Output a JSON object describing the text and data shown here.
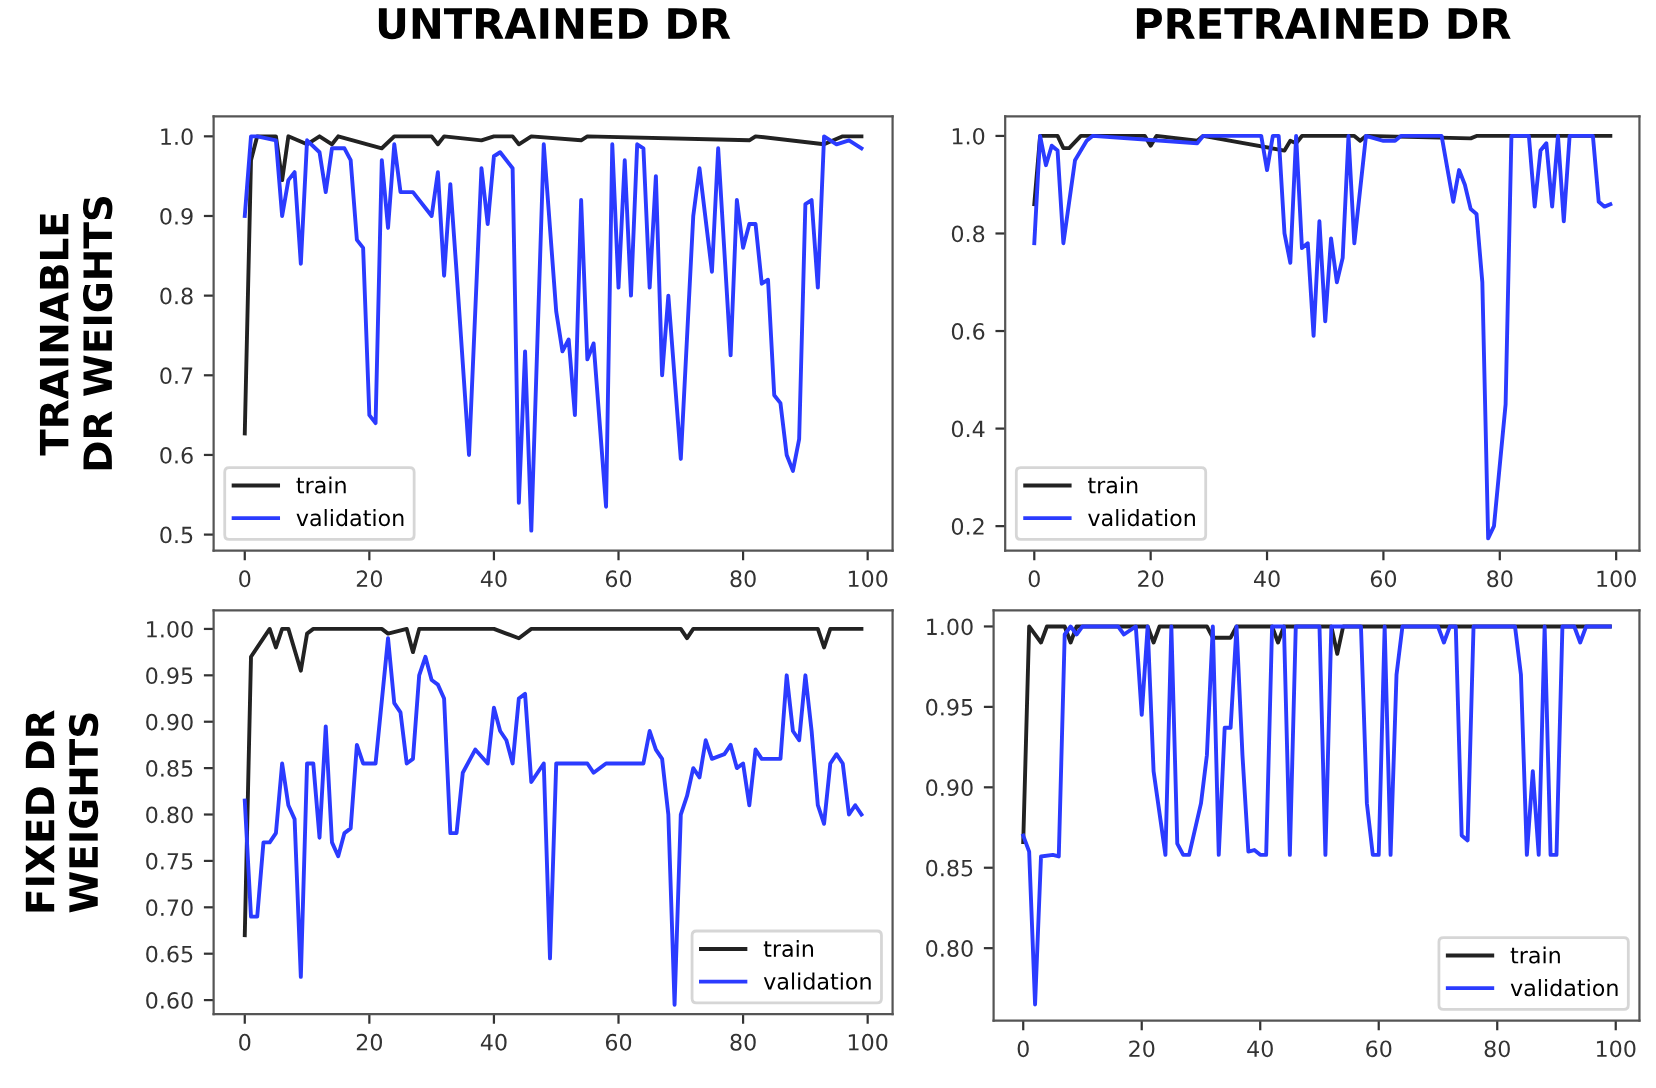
{
  "chart_data": [
    {
      "type": "line",
      "title": "UNTRAINED DR",
      "ylabel": "TRAINABLE\nDR WEIGHTS",
      "legend": "lower left",
      "xlim": [
        -5,
        104
      ],
      "ylim": [
        0.48,
        1.025
      ],
      "xticks": [
        0,
        20,
        40,
        60,
        80,
        100
      ],
      "yticks": [
        0.5,
        0.6,
        0.7,
        0.8,
        0.9,
        {
          "value": 1.0,
          "label": "1.0"
        }
      ],
      "series": [
        {
          "name": "train",
          "color": "#222222",
          "x": [
            0,
            1,
            2,
            5,
            6,
            7,
            10,
            12,
            14,
            15,
            22,
            24,
            30,
            31,
            32,
            38,
            40,
            43,
            44,
            46,
            54,
            55,
            81,
            82,
            93,
            96,
            99
          ],
          "values": [
            0.627,
            0.97,
            1.0,
            1.0,
            0.945,
            1.0,
            0.99,
            1.0,
            0.99,
            1.0,
            0.985,
            1.0,
            1.0,
            0.99,
            1.0,
            0.995,
            1.0,
            1.0,
            0.99,
            1.0,
            0.995,
            1.0,
            0.995,
            1.0,
            0.99,
            1.0,
            1.0
          ]
        },
        {
          "name": "validation",
          "color": "#2b3bff",
          "x": [
            0,
            1,
            2,
            5,
            6,
            7,
            8,
            9,
            10,
            12,
            13,
            14,
            16,
            17,
            18,
            19,
            20,
            21,
            22,
            23,
            24,
            25,
            27,
            29,
            30,
            31,
            32,
            33,
            34,
            36,
            38,
            39,
            40,
            41,
            43,
            44,
            45,
            46,
            48,
            50,
            51,
            52,
            53,
            54,
            55,
            56,
            58,
            59,
            60,
            61,
            62,
            63,
            64,
            65,
            66,
            67,
            68,
            70,
            72,
            73,
            75,
            76,
            78,
            79,
            80,
            81,
            82,
            83,
            84,
            85,
            86,
            87,
            88,
            89,
            90,
            91,
            92,
            93,
            95,
            97,
            99
          ],
          "values": [
            0.9,
            1.0,
            1.0,
            0.995,
            0.9,
            0.945,
            0.955,
            0.84,
            0.995,
            0.98,
            0.93,
            0.985,
            0.985,
            0.97,
            0.87,
            0.86,
            0.65,
            0.64,
            0.97,
            0.885,
            0.99,
            0.93,
            0.93,
            0.91,
            0.9,
            0.955,
            0.825,
            0.94,
            0.83,
            0.6,
            0.96,
            0.89,
            0.975,
            0.98,
            0.96,
            0.54,
            0.73,
            0.505,
            0.99,
            0.78,
            0.73,
            0.745,
            0.65,
            0.92,
            0.72,
            0.74,
            0.535,
            0.99,
            0.81,
            0.97,
            0.8,
            0.99,
            0.985,
            0.81,
            0.95,
            0.7,
            0.8,
            0.595,
            0.9,
            0.96,
            0.83,
            0.985,
            0.725,
            0.92,
            0.86,
            0.89,
            0.89,
            0.815,
            0.82,
            0.675,
            0.665,
            0.6,
            0.58,
            0.62,
            0.915,
            0.92,
            0.81,
            1.0,
            0.99,
            0.995,
            0.985
          ]
        }
      ]
    },
    {
      "type": "line",
      "title": "PRETRAINED DR",
      "legend": "lower left",
      "xlim": [
        -5,
        104
      ],
      "ylim": [
        0.15,
        1.04
      ],
      "xticks": [
        0,
        20,
        40,
        60,
        80,
        100
      ],
      "yticks": [
        0.2,
        0.4,
        0.6,
        0.8,
        {
          "value": 1.0,
          "label": "1.0"
        }
      ],
      "series": [
        {
          "name": "train",
          "color": "#222222",
          "x": [
            0,
            1,
            4,
            5,
            6,
            8,
            19,
            20,
            21,
            28,
            29,
            43,
            44,
            45,
            46,
            55,
            56,
            57,
            75,
            76,
            99
          ],
          "values": [
            0.86,
            1.0,
            1.0,
            0.975,
            0.975,
            1.0,
            1.0,
            0.98,
            1.0,
            0.99,
            1.0,
            0.97,
            0.99,
            0.985,
            1.0,
            1.0,
            0.99,
            1.0,
            0.995,
            1.0,
            1.0
          ]
        },
        {
          "name": "validation",
          "color": "#2b3bff",
          "x": [
            0,
            1,
            2,
            3,
            4,
            5,
            7,
            9,
            10,
            28,
            29,
            39,
            40,
            41,
            42,
            43,
            44,
            45,
            46,
            47,
            48,
            49,
            50,
            51,
            52,
            53,
            54,
            55,
            57,
            60,
            62,
            63,
            70,
            72,
            73,
            74,
            75,
            76,
            77,
            78,
            79,
            81,
            82,
            85,
            86,
            87,
            88,
            89,
            90,
            91,
            92,
            96,
            97,
            98,
            99
          ],
          "values": [
            0.78,
            1.0,
            0.94,
            0.98,
            0.97,
            0.78,
            0.95,
            0.99,
            1.0,
            0.985,
            1.0,
            1.0,
            0.93,
            1.0,
            1.0,
            0.8,
            0.74,
            1.0,
            0.77,
            0.78,
            0.59,
            0.825,
            0.62,
            0.79,
            0.7,
            0.75,
            1.0,
            0.78,
            1.0,
            0.99,
            0.99,
            1.0,
            1.0,
            0.865,
            0.93,
            0.9,
            0.85,
            0.84,
            0.7,
            0.175,
            0.2,
            0.45,
            1.0,
            1.0,
            0.855,
            0.97,
            0.985,
            0.855,
            1.0,
            0.825,
            1.0,
            1.0,
            0.865,
            0.855,
            0.86
          ]
        }
      ]
    },
    {
      "type": "line",
      "ylabel": "FIXED DR\nWEIGHTS",
      "legend": "lower right",
      "xlim": [
        -5,
        104
      ],
      "ylim": [
        0.585,
        1.02
      ],
      "xticks": [
        0,
        20,
        40,
        60,
        80,
        100
      ],
      "yticks": [
        {
          "value": 0.6,
          "label": "0.60"
        },
        {
          "value": 0.65,
          "label": "0.65"
        },
        {
          "value": 0.7,
          "label": "0.70"
        },
        {
          "value": 0.75,
          "label": "0.75"
        },
        {
          "value": 0.8,
          "label": "0.80"
        },
        {
          "value": 0.85,
          "label": "0.85"
        },
        {
          "value": 0.9,
          "label": "0.90"
        },
        {
          "value": 0.95,
          "label": "0.95"
        },
        {
          "value": 1.0,
          "label": "1.00"
        }
      ],
      "series": [
        {
          "name": "train",
          "color": "#222222",
          "x": [
            0,
            1,
            3,
            4,
            5,
            6,
            7,
            9,
            10,
            11,
            15,
            18,
            22,
            23,
            26,
            27,
            28,
            40,
            42,
            44,
            46,
            70,
            71,
            72,
            83,
            92,
            93,
            94,
            99
          ],
          "values": [
            0.67,
            0.97,
            0.99,
            1.0,
            0.98,
            1.0,
            1.0,
            0.955,
            0.995,
            1.0,
            1.0,
            1.0,
            1.0,
            0.995,
            1.0,
            0.975,
            1.0,
            1.0,
            0.995,
            0.99,
            1.0,
            1.0,
            0.99,
            1.0,
            1.0,
            1.0,
            0.98,
            1.0,
            1.0
          ]
        },
        {
          "name": "validation",
          "color": "#2b3bff",
          "x": [
            0,
            1,
            2,
            3,
            4,
            5,
            6,
            7,
            8,
            9,
            10,
            11,
            12,
            13,
            14,
            15,
            16,
            17,
            18,
            19,
            21,
            23,
            24,
            25,
            26,
            27,
            28,
            29,
            30,
            31,
            32,
            33,
            34,
            35,
            37,
            39,
            40,
            41,
            42,
            43,
            44,
            45,
            46,
            48,
            49,
            50,
            55,
            56,
            58,
            64,
            65,
            66,
            67,
            68,
            69,
            70,
            71,
            72,
            73,
            74,
            75,
            77,
            78,
            79,
            80,
            81,
            82,
            83,
            86,
            87,
            88,
            89,
            90,
            91,
            92,
            93,
            94,
            95,
            96,
            97,
            98,
            99
          ],
          "values": [
            0.815,
            0.69,
            0.69,
            0.77,
            0.77,
            0.78,
            0.855,
            0.81,
            0.795,
            0.625,
            0.855,
            0.855,
            0.775,
            0.895,
            0.77,
            0.755,
            0.78,
            0.785,
            0.875,
            0.855,
            0.855,
            0.99,
            0.92,
            0.91,
            0.855,
            0.86,
            0.95,
            0.97,
            0.945,
            0.94,
            0.925,
            0.78,
            0.78,
            0.845,
            0.87,
            0.855,
            0.915,
            0.89,
            0.88,
            0.855,
            0.925,
            0.93,
            0.835,
            0.855,
            0.645,
            0.855,
            0.855,
            0.845,
            0.855,
            0.855,
            0.89,
            0.87,
            0.86,
            0.8,
            0.595,
            0.8,
            0.82,
            0.85,
            0.84,
            0.88,
            0.86,
            0.865,
            0.875,
            0.85,
            0.855,
            0.81,
            0.87,
            0.86,
            0.86,
            0.95,
            0.89,
            0.88,
            0.95,
            0.89,
            0.81,
            0.79,
            0.855,
            0.865,
            0.855,
            0.8,
            0.81,
            0.8
          ]
        }
      ]
    },
    {
      "type": "line",
      "legend": "lower right",
      "xlim": [
        -5,
        104
      ],
      "ylim": [
        0.755,
        1.01
      ],
      "xticks": [
        0,
        20,
        40,
        60,
        80,
        100
      ],
      "yticks": [
        {
          "value": 0.8,
          "label": "0.80"
        },
        {
          "value": 0.85,
          "label": "0.85"
        },
        {
          "value": 0.9,
          "label": "0.90"
        },
        {
          "value": 0.95,
          "label": "0.95"
        },
        {
          "value": 1.0,
          "label": "1.00"
        }
      ],
      "series": [
        {
          "name": "train",
          "color": "#222222",
          "x": [
            0,
            1,
            3,
            4,
            7,
            8,
            9,
            21,
            22,
            23,
            31,
            32,
            35,
            36,
            42,
            43,
            44,
            52,
            53,
            54,
            99
          ],
          "values": [
            0.866,
            1.0,
            0.99,
            1.0,
            1.0,
            0.99,
            1.0,
            1.0,
            0.99,
            1.0,
            1.0,
            0.993,
            0.993,
            1.0,
            1.0,
            0.99,
            1.0,
            1.0,
            0.983,
            1.0,
            1.0
          ]
        },
        {
          "name": "validation",
          "color": "#2b3bff",
          "x": [
            0,
            1,
            2,
            3,
            5,
            6,
            7,
            8,
            9,
            10,
            16,
            17,
            19,
            20,
            21,
            22,
            24,
            25,
            26,
            27,
            28,
            30,
            31,
            32,
            33,
            34,
            35,
            36,
            37,
            38,
            39,
            40,
            41,
            42,
            44,
            45,
            46,
            50,
            51,
            52,
            57,
            58,
            59,
            60,
            61,
            62,
            63,
            64,
            70,
            71,
            72,
            73,
            74,
            75,
            76,
            83,
            84,
            85,
            86,
            87,
            88,
            89,
            90,
            91,
            93,
            94,
            95,
            99
          ],
          "values": [
            0.87,
            0.86,
            0.765,
            0.857,
            0.858,
            0.857,
            0.995,
            1.0,
            0.995,
            1.0,
            1.0,
            0.995,
            1.0,
            0.945,
            1.0,
            0.91,
            0.858,
            1.0,
            0.865,
            0.858,
            0.858,
            0.89,
            0.92,
            1.0,
            0.858,
            0.937,
            0.937,
            1.0,
            0.92,
            0.86,
            0.861,
            0.858,
            0.858,
            1.0,
            1.0,
            0.858,
            1.0,
            1.0,
            0.858,
            1.0,
            1.0,
            0.89,
            0.858,
            0.858,
            1.0,
            0.858,
            0.97,
            1.0,
            1.0,
            0.99,
            1.0,
            1.0,
            0.87,
            0.867,
            1.0,
            1.0,
            0.97,
            0.858,
            0.91,
            0.858,
            1.0,
            0.858,
            0.858,
            1.0,
            1.0,
            0.99,
            1.0,
            1.0
          ]
        }
      ]
    }
  ]
}
